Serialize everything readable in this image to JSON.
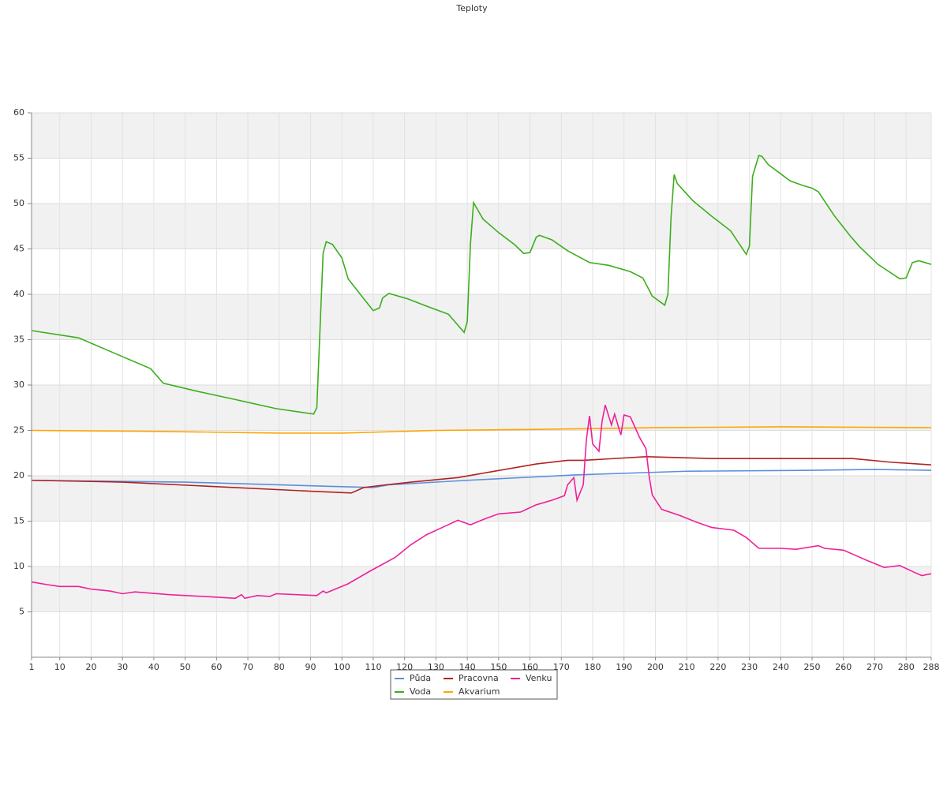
{
  "chart_data": {
    "type": "line",
    "title": "Teploty",
    "ylim": [
      0,
      60
    ],
    "yticks": [
      5,
      10,
      15,
      20,
      25,
      30,
      35,
      40,
      45,
      50,
      55,
      60
    ],
    "xlim": [
      1,
      288
    ],
    "xticks": [
      1,
      10,
      20,
      30,
      40,
      50,
      60,
      70,
      80,
      90,
      100,
      110,
      120,
      130,
      140,
      150,
      160,
      170,
      180,
      190,
      200,
      210,
      220,
      230,
      240,
      250,
      260,
      270,
      280,
      288
    ],
    "grid": true,
    "legend": "bottom",
    "series": [
      {
        "name": "Půda",
        "color": "#5b8fdc",
        "x": [
          1,
          50,
          100,
          110,
          115,
          140,
          175,
          210,
          250,
          270,
          288
        ],
        "values": [
          19.5,
          19.3,
          18.8,
          18.7,
          19,
          19.5,
          20.1,
          20.5,
          20.6,
          20.7,
          20.6
        ]
      },
      {
        "name": "Voda",
        "color": "#3cae1c",
        "x": [
          1,
          16,
          39,
          43,
          54,
          66,
          79,
          91,
          92,
          94,
          95,
          97,
          100,
          102,
          107,
          110,
          112,
          113,
          115,
          121,
          127,
          134,
          136,
          139,
          140,
          141,
          142,
          143,
          145,
          150,
          155,
          158,
          160,
          162,
          163,
          167,
          172,
          179,
          185,
          192,
          196,
          199,
          203,
          204,
          205,
          206,
          207,
          212,
          218,
          224,
          229,
          230,
          231,
          233,
          234,
          236,
          243,
          247,
          250,
          252,
          257,
          262,
          265,
          271,
          278,
          280,
          282,
          284,
          288
        ],
        "values": [
          36,
          35.2,
          31.8,
          30.2,
          29.3,
          28.4,
          27.4,
          26.8,
          27.5,
          44.5,
          45.8,
          45.5,
          44,
          41.7,
          39.5,
          38.2,
          38.5,
          39.6,
          40.1,
          39.5,
          38.7,
          37.8,
          37,
          35.8,
          37,
          45.5,
          50.1,
          49.5,
          48.3,
          46.8,
          45.5,
          44.5,
          44.6,
          46.3,
          46.5,
          46,
          44.8,
          43.5,
          43.2,
          42.5,
          41.8,
          39.8,
          38.8,
          40,
          48.5,
          53.2,
          52.2,
          50.3,
          48.6,
          47,
          44.4,
          45.3,
          53,
          55.3,
          55.2,
          54.3,
          52.5,
          52,
          51.7,
          51.3,
          48.7,
          46.5,
          45.3,
          43.3,
          41.7,
          41.8,
          43.5,
          43.7,
          43.3
        ]
      },
      {
        "name": "Pracovna",
        "color": "#b22222",
        "x": [
          1,
          30,
          60,
          90,
          103,
          107,
          114,
          122,
          137,
          147,
          162,
          172,
          177,
          197,
          218,
          240,
          263,
          275,
          288
        ],
        "values": [
          19.5,
          19.3,
          18.8,
          18.3,
          18.1,
          18.7,
          19,
          19.3,
          19.8,
          20.4,
          21.3,
          21.7,
          21.7,
          22.1,
          21.9,
          21.9,
          21.9,
          21.5,
          21.2
        ]
      },
      {
        "name": "Akvarium",
        "color": "#ffa500",
        "x": [
          1,
          40,
          80,
          100,
          130,
          160,
          200,
          240,
          288
        ],
        "values": [
          25,
          24.9,
          24.7,
          24.7,
          25,
          25.1,
          25.3,
          25.4,
          25.3
        ]
      },
      {
        "name": "Venku",
        "color": "#f0209a",
        "x": [
          1,
          6,
          10,
          16,
          20,
          26,
          30,
          34,
          45,
          56,
          66,
          68,
          69,
          73,
          77,
          79,
          92,
          94,
          95,
          102,
          109,
          117,
          122,
          127,
          132,
          137,
          141,
          146,
          150,
          157,
          162,
          167,
          171,
          172,
          174,
          175,
          177,
          178,
          179,
          180,
          182,
          183,
          184,
          186,
          187,
          189,
          190,
          192,
          195,
          197,
          198,
          199,
          202,
          208,
          213,
          218,
          225,
          229,
          233,
          240,
          245,
          252,
          254,
          260,
          264,
          268,
          273,
          278,
          283,
          285,
          288
        ],
        "values": [
          8.3,
          8,
          7.8,
          7.8,
          7.5,
          7.3,
          7,
          7.2,
          6.9,
          6.7,
          6.5,
          6.9,
          6.5,
          6.8,
          6.7,
          7,
          6.8,
          7.3,
          7.1,
          8.1,
          9.5,
          11,
          12.4,
          13.5,
          14.3,
          15.1,
          14.6,
          15.3,
          15.8,
          16,
          16.8,
          17.3,
          17.8,
          19,
          19.8,
          17.3,
          19,
          24,
          26.6,
          23.5,
          22.7,
          26,
          27.8,
          25.6,
          26.8,
          24.5,
          26.7,
          26.5,
          24.2,
          23,
          20,
          17.9,
          16.3,
          15.6,
          14.9,
          14.3,
          14,
          13.2,
          12,
          12,
          11.9,
          12.3,
          12,
          11.8,
          11.2,
          10.6,
          9.9,
          10.1,
          9.3,
          9,
          9.2
        ]
      }
    ]
  }
}
